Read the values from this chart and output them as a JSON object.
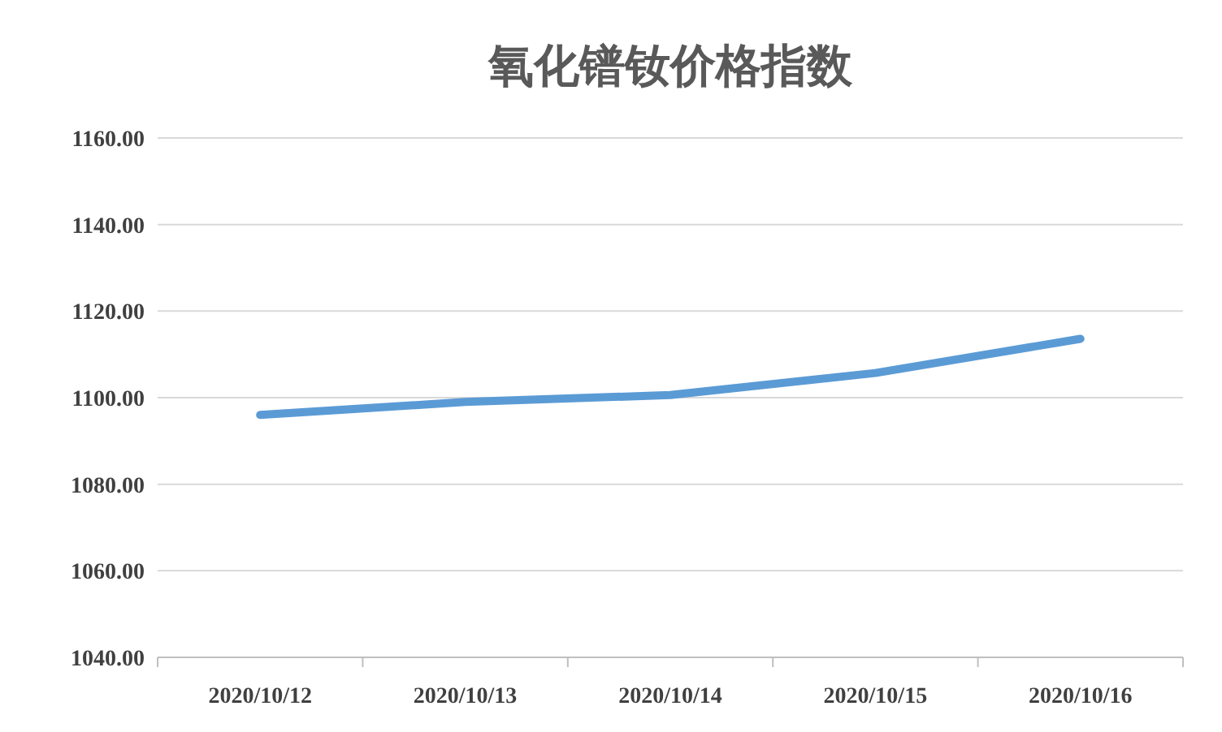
{
  "chart_data": {
    "type": "line",
    "title": "氧化镨钕价格指数",
    "categories": [
      "2020/10/12",
      "2020/10/13",
      "2020/10/14",
      "2020/10/15",
      "2020/10/16"
    ],
    "series": [
      {
        "color": "#5b9bd5",
        "values": [
          1096,
          1099,
          1100.6,
          1105.7,
          1113.6
        ]
      }
    ],
    "ylim": [
      1040,
      1160
    ],
    "yticks": [
      {
        "value": 1040,
        "label": "1040.00"
      },
      {
        "value": 1060,
        "label": "1060.00"
      },
      {
        "value": 1080,
        "label": "1080.00"
      },
      {
        "value": 1100,
        "label": "1100.00"
      },
      {
        "value": 1120,
        "label": "1120.00"
      },
      {
        "value": 1140,
        "label": "1140.00"
      },
      {
        "value": 1160,
        "label": "1160.00"
      }
    ],
    "grid": "y",
    "marker": "none",
    "line_style": "solid"
  }
}
